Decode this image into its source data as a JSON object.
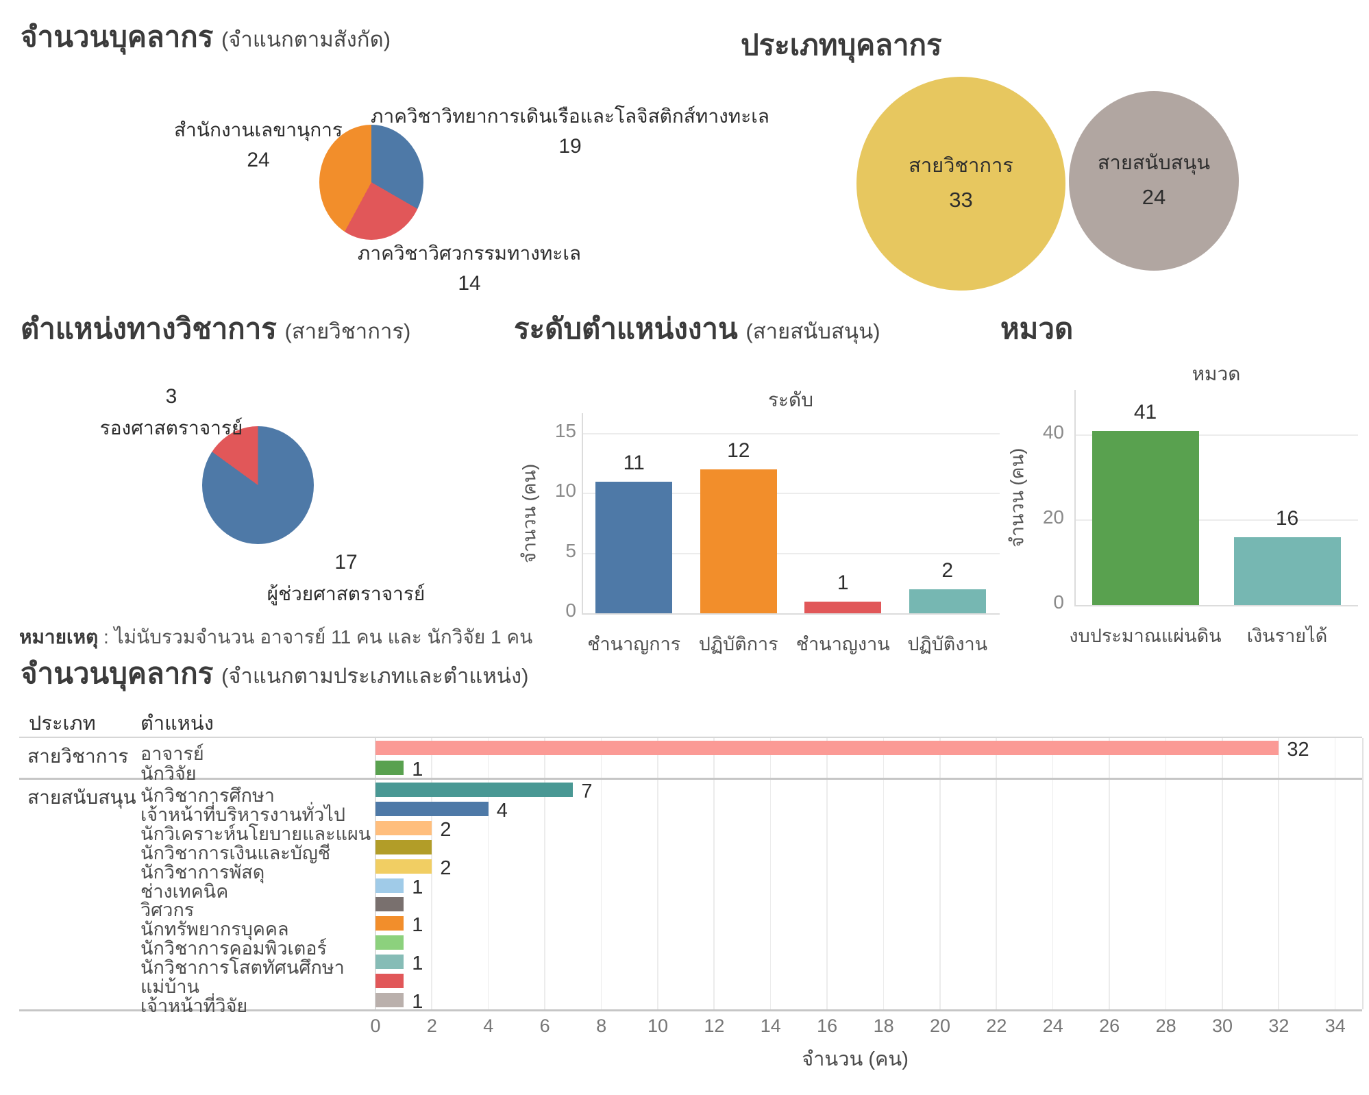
{
  "headings": {
    "affiliation": {
      "main": "จำนวนบุคลากร",
      "sub": "(จำแนกตามสังกัด)"
    },
    "personnel_type": "ประเภทบุคลากร",
    "academic_position": {
      "main": "ตำแหน่งทางวิชาการ",
      "sub": "(สายวิชาการ)"
    },
    "job_level": {
      "main": "ระดับตำแหน่งงาน",
      "sub": "(สายสนับสนุน)"
    },
    "budget": "หมวด",
    "type_position": {
      "main": "จำนวนบุคลากร",
      "sub": "(จำแนกตามประเภทและตำแหน่ง)"
    }
  },
  "note": {
    "prefix": "หมายเหตุ",
    "text": " : ไม่นับรวมจำนวน อาจารย์ 11 คน และ นักวิจัย 1 คน"
  },
  "chart_data": [
    {
      "id": "affiliation",
      "type": "pie",
      "title": "จำนวนบุคลากร (จำแนกตามสังกัด)",
      "start_angle_deg": 0,
      "direction": "clockwise",
      "slices": [
        {
          "label": "ภาควิชาวิทยาการเดินเรือและโลจิสติกส์ทางทะเล",
          "value": 19,
          "color": "#4e79a7"
        },
        {
          "label": "ภาควิชาวิศวกรรมทางทะเล",
          "value": 14,
          "color": "#e15759"
        },
        {
          "label": "สำนักงานเลขานุการ",
          "value": 24,
          "color": "#f28e2b"
        }
      ]
    },
    {
      "id": "personnel-type",
      "type": "bubble",
      "title": "ประเภทบุคลากร",
      "bubbles": [
        {
          "label": "สายวิชาการ",
          "value": 33,
          "color": "#e7c75f"
        },
        {
          "label": "สายสนับสนุน",
          "value": 24,
          "color": "#b1a6a1"
        }
      ]
    },
    {
      "id": "academic-position",
      "type": "pie",
      "title": "ตำแหน่งทางวิชาการ (สายวิชาการ)",
      "start_angle_deg": 0,
      "direction": "clockwise",
      "slices": [
        {
          "label": "ผู้ช่วยศาสตราจารย์",
          "value": 17,
          "color": "#4e79a7"
        },
        {
          "label": "รองศาสตราจารย์",
          "value": 3,
          "color": "#e15759"
        }
      ],
      "note": "หมายเหตุ : ไม่นับรวมจำนวน อาจารย์ 11 คน และ นักวิจัย 1 คน"
    },
    {
      "id": "job-level",
      "type": "bar",
      "title": "ระดับตำแหน่งงาน (สายสนับสนุน)",
      "subtitle": "ระดับ",
      "categories": [
        "ชำนาญการ",
        "ปฏิบัติการ",
        "ชำนาญงาน",
        "ปฏิบัติงาน"
      ],
      "values": [
        11,
        12,
        1,
        2
      ],
      "colors": [
        "#4e79a7",
        "#f28e2b",
        "#e15759",
        "#76b7b2"
      ],
      "ylabel": "จำนวน (คน)",
      "yticks": [
        0,
        5,
        10,
        15
      ],
      "ylim": [
        0,
        16.7
      ],
      "grid": true,
      "legend": "none"
    },
    {
      "id": "budget",
      "type": "bar",
      "title": "หมวด",
      "subtitle": "หมวด",
      "categories": [
        "งบประมาณแผ่นดิน",
        "เงินรายได้"
      ],
      "values": [
        41,
        16
      ],
      "colors": [
        "#59a14f",
        "#76b7b2"
      ],
      "ylabel": "จำนวน (คน)",
      "yticks": [
        0,
        20,
        40
      ],
      "ylim": [
        0,
        50.6
      ],
      "grid": true,
      "legend": "none"
    },
    {
      "id": "type-position",
      "type": "bar-h",
      "title": "จำนวนบุคลากร (จำแนกตามประเภทและตำแหน่ง)",
      "col_headers": [
        "ประเภท",
        "ตำแหน่ง"
      ],
      "xlabel": "จำนวน (คน)",
      "xticks": [
        0,
        2,
        4,
        6,
        8,
        10,
        12,
        14,
        16,
        18,
        20,
        22,
        24,
        26,
        28,
        30,
        32,
        34
      ],
      "xlim": [
        0,
        34
      ],
      "groups": [
        {
          "type": "สายวิชาการ",
          "rows": [
            {
              "position": "อาจารย์",
              "value": 32,
              "label": "32",
              "color": "#fb9a95"
            },
            {
              "position": "นักวิจัย",
              "value": 1,
              "label": "1",
              "color": "#59a14f"
            }
          ]
        },
        {
          "type": "สายสนับสนุน",
          "rows": [
            {
              "position": "นักวิชาการศึกษา",
              "value": 7,
              "label": "7",
              "color": "#499894"
            },
            {
              "position": "เจ้าหน้าที่บริหารงานทั่วไป",
              "value": 4,
              "label": "4",
              "color": "#4e79a7"
            },
            {
              "position": "นักวิเคราะห์นโยบายและแผน",
              "value": 2,
              "label": "2",
              "color": "#ffbe7d"
            },
            {
              "position": "นักวิชาการเงินและบัญชี",
              "value": 2,
              "label": "",
              "color": "#b29d28"
            },
            {
              "position": "นักวิชาการพัสดุ",
              "value": 2,
              "label": "2",
              "color": "#f1ce63"
            },
            {
              "position": "ช่างเทคนิค",
              "value": 1,
              "label": "1",
              "color": "#a0cbe8"
            },
            {
              "position": "วิศวกร",
              "value": 1,
              "label": "",
              "color": "#79706e"
            },
            {
              "position": "นักทรัพยากรบุคคล",
              "value": 1,
              "label": "1",
              "color": "#f28e2b"
            },
            {
              "position": "นักวิชาการคอมพิวเตอร์",
              "value": 1,
              "label": "",
              "color": "#8cd17d"
            },
            {
              "position": "นักวิชาการโสตทัศนศึกษา",
              "value": 1,
              "label": "1",
              "color": "#86bcb6"
            },
            {
              "position": "แม่บ้าน",
              "value": 1,
              "label": "",
              "color": "#e15759"
            },
            {
              "position": "เจ้าหน้าที่วิจัย",
              "value": 1,
              "label": "1",
              "color": "#bab0ac"
            }
          ]
        }
      ]
    }
  ]
}
